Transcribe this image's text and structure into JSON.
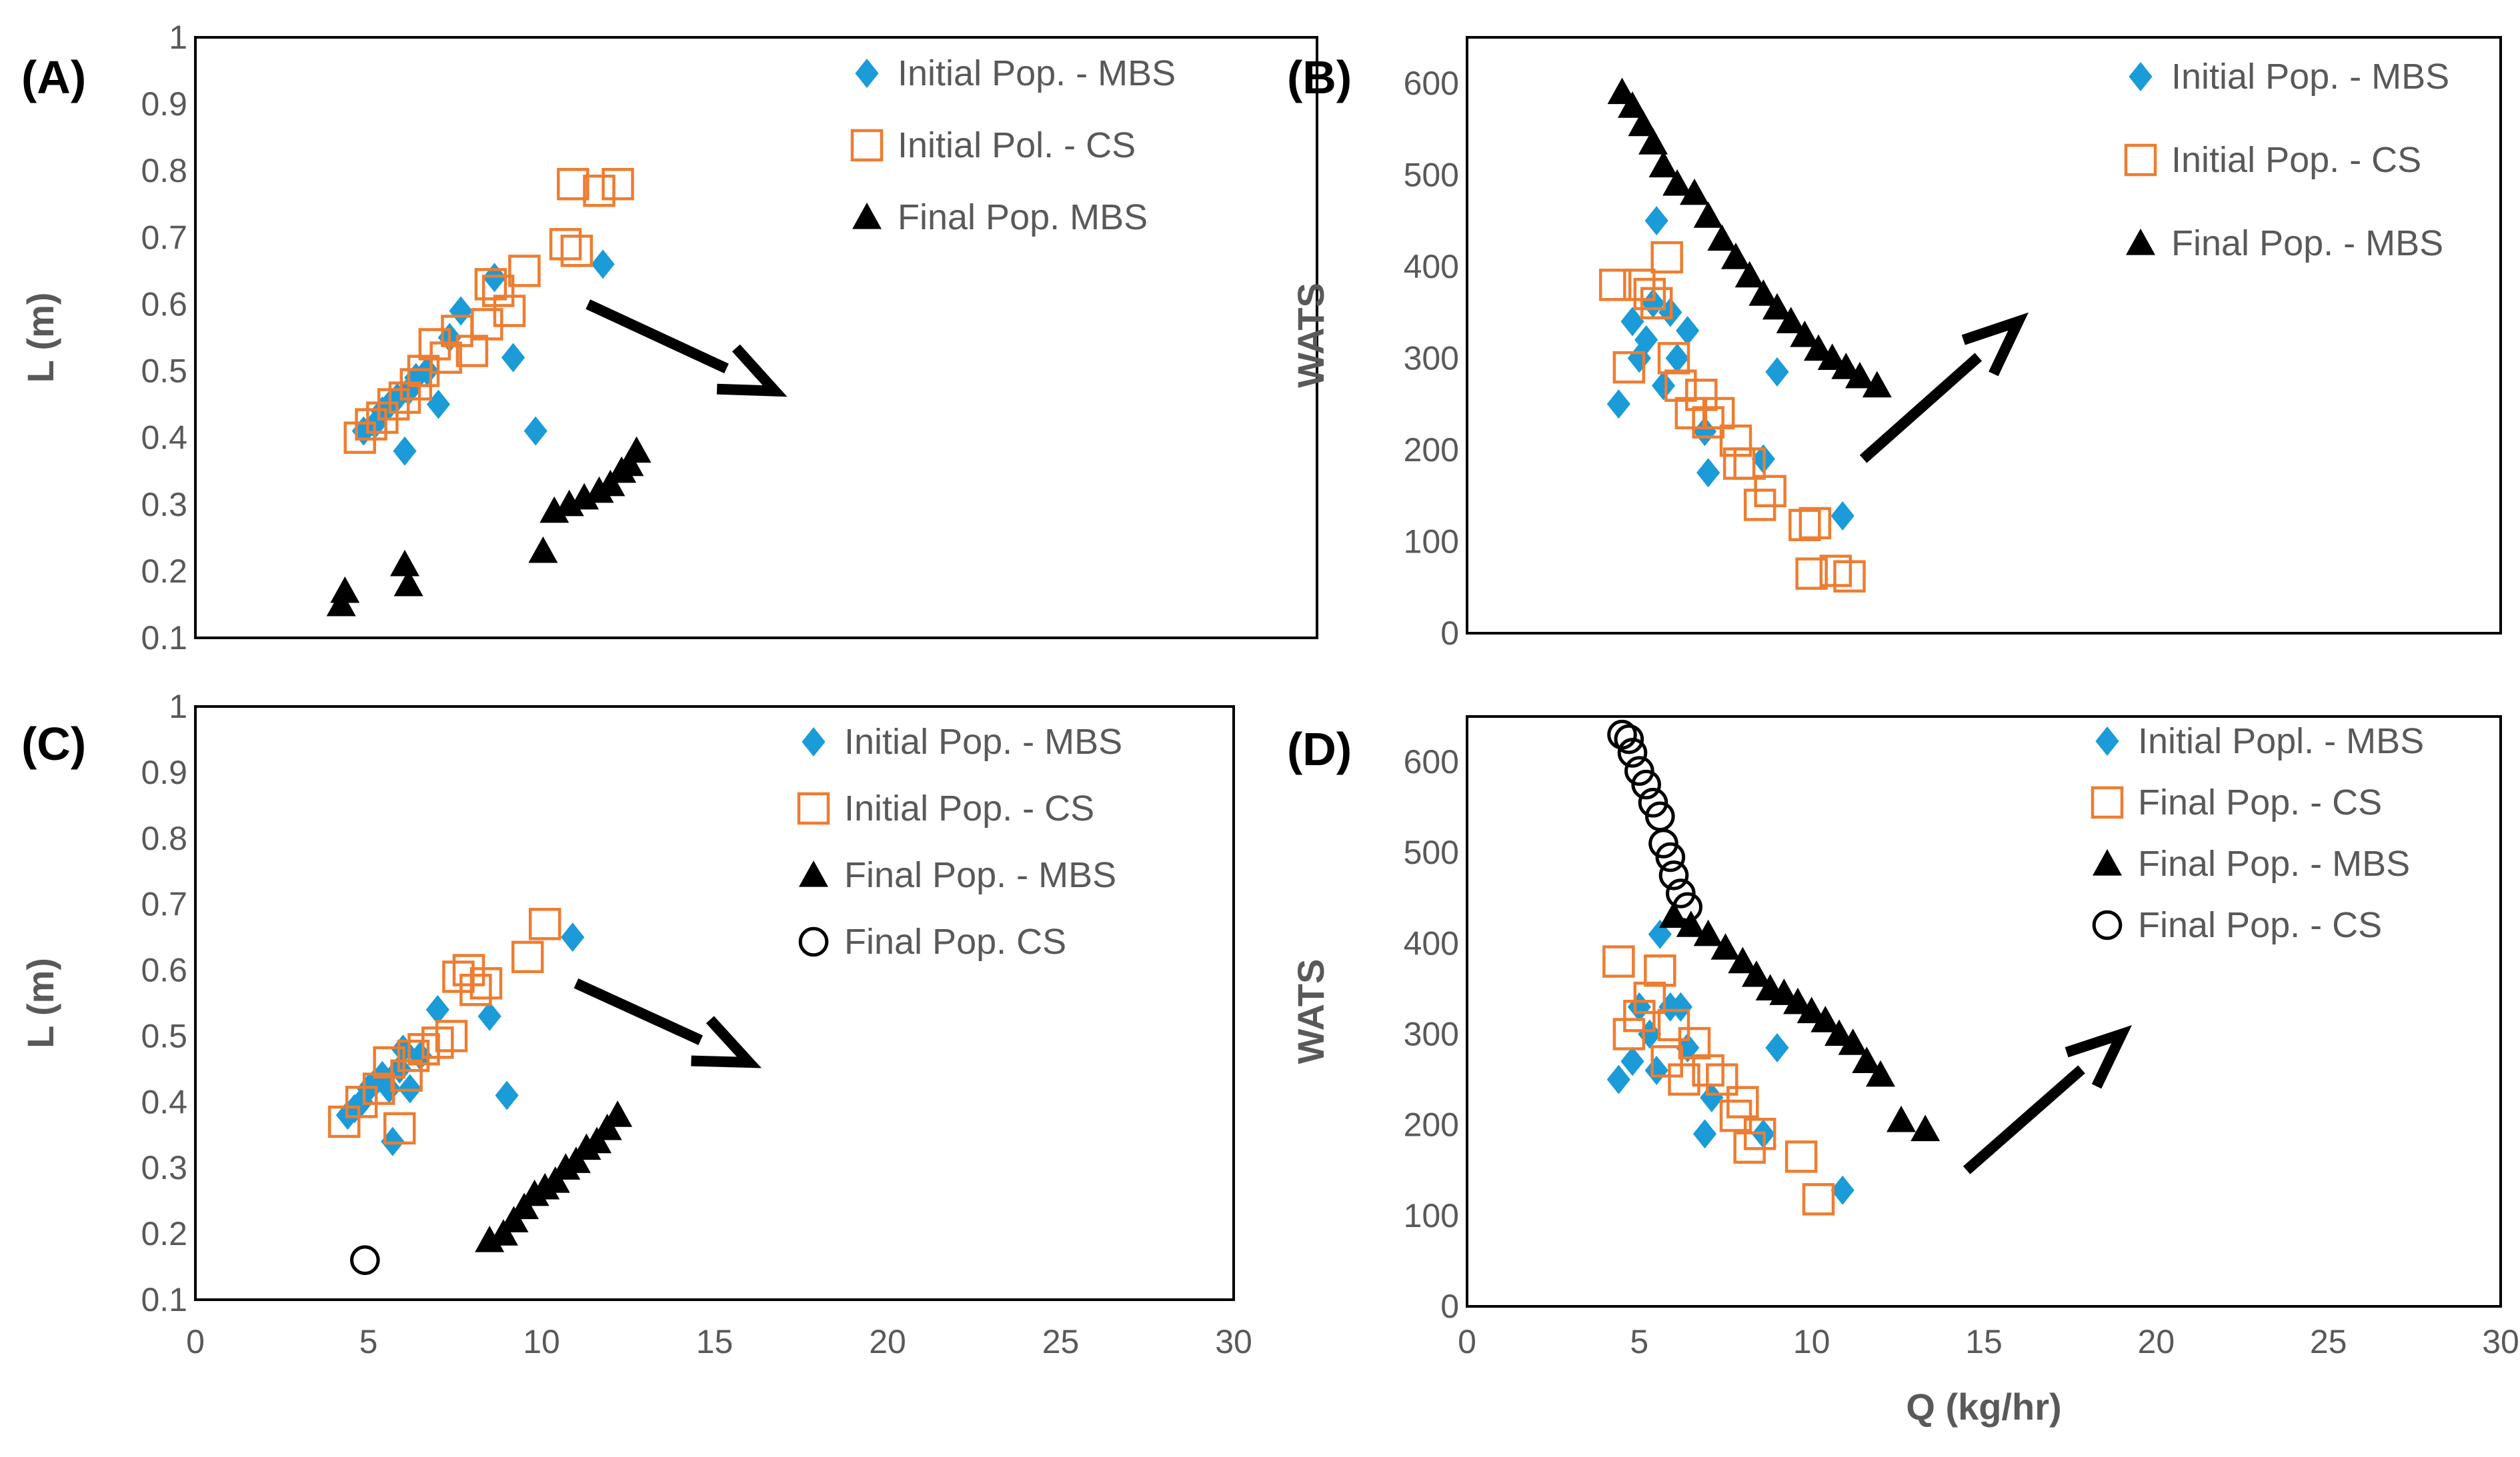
{
  "colors": {
    "mbs_initial": "#1B9BD7",
    "cs_initial": "#ED7D31",
    "final": "#000000",
    "axis": "#595959"
  },
  "chart_data": [
    {
      "panel": "(A)",
      "type": "scatter",
      "ylabel": "L (m)",
      "xlabel": "",
      "xlim": [
        0,
        30
      ],
      "ylim": [
        0.1,
        1
      ],
      "yticks": [
        "0.1",
        "0.2",
        "0.3",
        "0.4",
        "0.5",
        "0.6",
        "0.7",
        "0.8",
        "0.9",
        "1"
      ],
      "xticks": [],
      "arrow": {
        "from": [
          10.5,
          0.6
        ],
        "to": [
          15.5,
          0.47
        ]
      },
      "series": [
        {
          "name": "Initial Pop. - MBS",
          "marker": "diamond",
          "color": "#1B9BD7",
          "points": [
            [
              4.5,
              0.41
            ],
            [
              4.8,
              0.42
            ],
            [
              5.0,
              0.44
            ],
            [
              5.2,
              0.45
            ],
            [
              5.4,
              0.46
            ],
            [
              5.6,
              0.38
            ],
            [
              5.7,
              0.47
            ],
            [
              5.9,
              0.49
            ],
            [
              6.2,
              0.5
            ],
            [
              6.5,
              0.45
            ],
            [
              6.8,
              0.55
            ],
            [
              7.1,
              0.59
            ],
            [
              8.0,
              0.64
            ],
            [
              8.5,
              0.52
            ],
            [
              9.1,
              0.41
            ],
            [
              10.9,
              0.66
            ]
          ]
        },
        {
          "name": "Initial Pol. - CS",
          "marker": "square",
          "color": "#ED7D31",
          "points": [
            [
              4.4,
              0.4
            ],
            [
              4.7,
              0.42
            ],
            [
              5.0,
              0.43
            ],
            [
              5.3,
              0.45
            ],
            [
              5.6,
              0.46
            ],
            [
              5.9,
              0.48
            ],
            [
              6.1,
              0.5
            ],
            [
              6.4,
              0.54
            ],
            [
              6.7,
              0.52
            ],
            [
              7.0,
              0.56
            ],
            [
              7.4,
              0.53
            ],
            [
              7.8,
              0.57
            ],
            [
              7.9,
              0.63
            ],
            [
              8.1,
              0.62
            ],
            [
              8.4,
              0.59
            ],
            [
              8.8,
              0.65
            ],
            [
              9.9,
              0.69
            ],
            [
              10.2,
              0.68
            ],
            [
              10.1,
              0.78
            ],
            [
              10.8,
              0.77
            ],
            [
              11.3,
              0.78
            ]
          ]
        },
        {
          "name": "Final Pop. MBS",
          "marker": "triangle",
          "color": "#000000",
          "points": [
            [
              3.9,
              0.15
            ],
            [
              4.0,
              0.17
            ],
            [
              5.7,
              0.18
            ],
            [
              5.6,
              0.21
            ],
            [
              9.3,
              0.23
            ],
            [
              9.6,
              0.29
            ],
            [
              10.0,
              0.3
            ],
            [
              10.4,
              0.31
            ],
            [
              10.8,
              0.32
            ],
            [
              11.1,
              0.33
            ],
            [
              11.4,
              0.35
            ],
            [
              11.6,
              0.36
            ],
            [
              11.8,
              0.38
            ]
          ]
        }
      ]
    },
    {
      "panel": "(B)",
      "type": "scatter",
      "ylabel": "WATS",
      "xlabel": "",
      "xlim": [
        0,
        30
      ],
      "ylim": [
        0,
        650
      ],
      "yticks": [
        "0",
        "100",
        "200",
        "300",
        "400",
        "500",
        "600"
      ],
      "xticks": [],
      "arrow": {
        "from": [
          11.5,
          190
        ],
        "to": [
          16,
          340
        ]
      },
      "series": [
        {
          "name": "Initial Pop. - MBS",
          "marker": "diamond",
          "color": "#1B9BD7",
          "points": [
            [
              4.4,
              250
            ],
            [
              4.8,
              340
            ],
            [
              5.0,
              300
            ],
            [
              5.2,
              320
            ],
            [
              5.4,
              360
            ],
            [
              5.5,
              450
            ],
            [
              5.7,
              270
            ],
            [
              5.9,
              350
            ],
            [
              6.1,
              300
            ],
            [
              6.4,
              330
            ],
            [
              6.9,
              220
            ],
            [
              7.0,
              175
            ],
            [
              8.6,
              190
            ],
            [
              9.0,
              285
            ],
            [
              10.9,
              128
            ]
          ]
        },
        {
          "name": "Initial Pop. - CS",
          "marker": "square",
          "color": "#ED7D31",
          "points": [
            [
              4.3,
              380
            ],
            [
              4.7,
              290
            ],
            [
              5.0,
              380
            ],
            [
              5.3,
              370
            ],
            [
              5.5,
              360
            ],
            [
              5.8,
              410
            ],
            [
              6.0,
              300
            ],
            [
              6.2,
              270
            ],
            [
              6.5,
              240
            ],
            [
              6.8,
              260
            ],
            [
              7.0,
              230
            ],
            [
              7.3,
              240
            ],
            [
              7.8,
              210
            ],
            [
              7.9,
              185
            ],
            [
              8.2,
              185
            ],
            [
              8.5,
              140
            ],
            [
              8.8,
              155
            ],
            [
              9.8,
              118
            ],
            [
              10.1,
              120
            ],
            [
              10.0,
              65
            ],
            [
              10.7,
              68
            ],
            [
              11.1,
              62
            ]
          ]
        },
        {
          "name": "Final Pop. - MBS",
          "marker": "triangle",
          "color": "#000000",
          "points": [
            [
              4.5,
              590
            ],
            [
              4.8,
              575
            ],
            [
              5.1,
              555
            ],
            [
              5.4,
              535
            ],
            [
              5.7,
              510
            ],
            [
              6.1,
              490
            ],
            [
              6.6,
              480
            ],
            [
              7.0,
              455
            ],
            [
              7.4,
              430
            ],
            [
              7.8,
              410
            ],
            [
              8.2,
              390
            ],
            [
              8.6,
              370
            ],
            [
              9.0,
              355
            ],
            [
              9.4,
              340
            ],
            [
              9.8,
              325
            ],
            [
              10.2,
              310
            ],
            [
              10.6,
              300
            ],
            [
              11.0,
              290
            ],
            [
              11.4,
              280
            ],
            [
              11.9,
              270
            ]
          ]
        }
      ]
    },
    {
      "panel": "(C)",
      "type": "scatter",
      "ylabel": "L (m)",
      "xlabel": "",
      "xlim": [
        0,
        30
      ],
      "ylim": [
        0.1,
        1
      ],
      "yticks": [
        "0.1",
        "0.2",
        "0.3",
        "0.4",
        "0.5",
        "0.6",
        "0.7",
        "0.8",
        "0.9",
        "1"
      ],
      "xticks": [
        "0",
        "5",
        "10",
        "15",
        "20",
        "25",
        "30"
      ],
      "arrow": {
        "from": [
          11,
          0.58
        ],
        "to": [
          16,
          0.46
        ]
      },
      "series": [
        {
          "name": "Initial Pop. - MBS",
          "marker": "diamond",
          "color": "#1B9BD7",
          "points": [
            [
              4.4,
              0.38
            ],
            [
              4.6,
              0.39
            ],
            [
              4.8,
              0.4
            ],
            [
              5.0,
              0.42
            ],
            [
              5.2,
              0.43
            ],
            [
              5.4,
              0.44
            ],
            [
              5.6,
              0.42
            ],
            [
              5.7,
              0.34
            ],
            [
              5.9,
              0.45
            ],
            [
              6.0,
              0.48
            ],
            [
              6.2,
              0.42
            ],
            [
              6.5,
              0.47
            ],
            [
              7.0,
              0.54
            ],
            [
              8.5,
              0.53
            ],
            [
              9.0,
              0.41
            ],
            [
              10.9,
              0.65
            ]
          ]
        },
        {
          "name": "Initial Pop. - CS",
          "marker": "square",
          "color": "#ED7D31",
          "points": [
            [
              4.3,
              0.37
            ],
            [
              4.8,
              0.4
            ],
            [
              5.3,
              0.42
            ],
            [
              5.6,
              0.46
            ],
            [
              5.9,
              0.36
            ],
            [
              6.1,
              0.44
            ],
            [
              6.3,
              0.47
            ],
            [
              6.6,
              0.48
            ],
            [
              7.0,
              0.49
            ],
            [
              7.4,
              0.5
            ],
            [
              7.6,
              0.59
            ],
            [
              7.9,
              0.6
            ],
            [
              8.1,
              0.57
            ],
            [
              8.4,
              0.58
            ],
            [
              9.6,
              0.62
            ],
            [
              10.1,
              0.67
            ]
          ]
        },
        {
          "name": "Final Pop. - MBS",
          "marker": "triangle",
          "color": "#000000",
          "points": [
            [
              8.5,
              0.19
            ],
            [
              8.9,
              0.2
            ],
            [
              9.2,
              0.22
            ],
            [
              9.5,
              0.24
            ],
            [
              9.8,
              0.26
            ],
            [
              10.1,
              0.27
            ],
            [
              10.4,
              0.28
            ],
            [
              10.7,
              0.3
            ],
            [
              11.0,
              0.31
            ],
            [
              11.3,
              0.33
            ],
            [
              11.6,
              0.34
            ],
            [
              11.9,
              0.36
            ],
            [
              12.2,
              0.38
            ]
          ]
        },
        {
          "name": "Final Pop. CS",
          "marker": "circle",
          "color": "#000000",
          "points": [
            [
              4.9,
              0.16
            ]
          ]
        }
      ]
    },
    {
      "panel": "(D)",
      "type": "scatter",
      "ylabel": "WATS",
      "xlabel": "Q (kg/hr)",
      "xlim": [
        0,
        30
      ],
      "ylim": [
        0,
        650
      ],
      "yticks": [
        "0",
        "100",
        "200",
        "300",
        "400",
        "500",
        "600"
      ],
      "xticks": [
        "0",
        "5",
        "10",
        "15",
        "20",
        "25",
        "30"
      ],
      "arrow": {
        "from": [
          14.5,
          150
        ],
        "to": [
          19,
          300
        ]
      },
      "series": [
        {
          "name": "Initial Popl. - MBS",
          "marker": "diamond",
          "color": "#1B9BD7",
          "points": [
            [
              4.4,
              250
            ],
            [
              4.8,
              270
            ],
            [
              5.0,
              330
            ],
            [
              5.3,
              300
            ],
            [
              5.5,
              260
            ],
            [
              5.6,
              410
            ],
            [
              5.9,
              330
            ],
            [
              6.2,
              330
            ],
            [
              6.4,
              285
            ],
            [
              6.9,
              190
            ],
            [
              7.1,
              230
            ],
            [
              8.6,
              190
            ],
            [
              9.0,
              285
            ],
            [
              10.9,
              128
            ]
          ]
        },
        {
          "name": "Final Pop. - CS",
          "marker": "square",
          "color": "#ED7D31",
          "points": [
            [
              4.4,
              380
            ],
            [
              4.7,
              300
            ],
            [
              5.0,
              320
            ],
            [
              5.3,
              340
            ],
            [
              5.6,
              370
            ],
            [
              5.8,
              270
            ],
            [
              6.0,
              310
            ],
            [
              6.3,
              250
            ],
            [
              6.6,
              290
            ],
            [
              7.0,
              260
            ],
            [
              7.4,
              250
            ],
            [
              7.8,
              210
            ],
            [
              8.0,
              225
            ],
            [
              8.2,
              175
            ],
            [
              8.5,
              190
            ],
            [
              9.7,
              165
            ],
            [
              10.2,
              118
            ]
          ]
        },
        {
          "name": "Final Pop. - MBS",
          "marker": "triangle",
          "color": "#000000",
          "points": [
            [
              6.0,
              430
            ],
            [
              6.5,
              420
            ],
            [
              7.0,
              410
            ],
            [
              7.5,
              395
            ],
            [
              8.0,
              380
            ],
            [
              8.4,
              365
            ],
            [
              8.8,
              350
            ],
            [
              9.2,
              345
            ],
            [
              9.6,
              335
            ],
            [
              10.0,
              325
            ],
            [
              10.4,
              315
            ],
            [
              10.8,
              300
            ],
            [
              11.2,
              290
            ],
            [
              11.6,
              270
            ],
            [
              12.0,
              255
            ],
            [
              12.6,
              205
            ],
            [
              13.3,
              195
            ]
          ]
        },
        {
          "name": "Final Pop. - CS",
          "marker": "circle",
          "color": "#000000",
          "points": [
            [
              4.5,
              630
            ],
            [
              4.7,
              625
            ],
            [
              4.8,
              610
            ],
            [
              5.0,
              590
            ],
            [
              5.2,
              575
            ],
            [
              5.4,
              555
            ],
            [
              5.6,
              540
            ],
            [
              5.7,
              510
            ],
            [
              5.9,
              495
            ],
            [
              6.0,
              475
            ],
            [
              6.2,
              455
            ],
            [
              6.4,
              440
            ]
          ]
        }
      ]
    }
  ]
}
